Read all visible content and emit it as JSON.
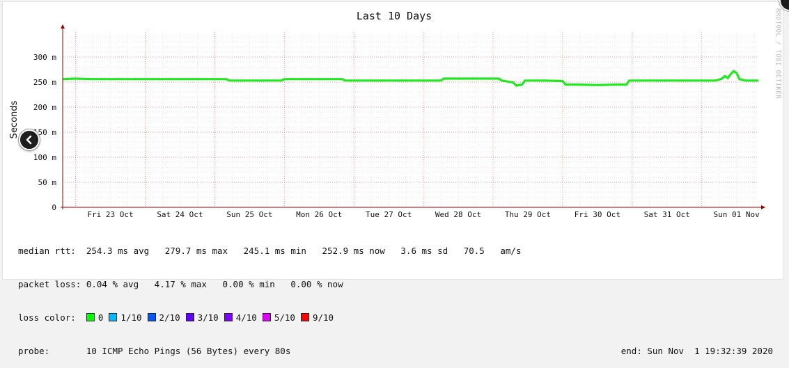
{
  "chart_data": {
    "type": "line",
    "title": "Last 10 Days",
    "ylabel": "Seconds",
    "xlabel": "",
    "ylim": [
      0,
      0.35
    ],
    "yticks": [
      {
        "value": 0,
        "label": "0"
      },
      {
        "value": 0.05,
        "label": "50 m"
      },
      {
        "value": 0.1,
        "label": "100 m"
      },
      {
        "value": 0.15,
        "label": "150 m"
      },
      {
        "value": 0.2,
        "label": "200 m"
      },
      {
        "value": 0.25,
        "label": "250 m"
      },
      {
        "value": 0.3,
        "label": "300 m"
      }
    ],
    "xlim": [
      "2020-10-22T19:32",
      "2020-11-01T19:32"
    ],
    "xticks": [
      {
        "value": "2020-10-23T12:00",
        "label": "Fri 23 Oct"
      },
      {
        "value": "2020-10-24T12:00",
        "label": "Sat 24 Oct"
      },
      {
        "value": "2020-10-25T12:00",
        "label": "Sun 25 Oct"
      },
      {
        "value": "2020-10-26T12:00",
        "label": "Mon 26 Oct"
      },
      {
        "value": "2020-10-27T12:00",
        "label": "Tue 27 Oct"
      },
      {
        "value": "2020-10-28T12:00",
        "label": "Wed 28 Oct"
      },
      {
        "value": "2020-10-29T12:00",
        "label": "Thu 29 Oct"
      },
      {
        "value": "2020-10-30T12:00",
        "label": "Fri 30 Oct"
      },
      {
        "value": "2020-10-31T12:00",
        "label": "Sat 31 Oct"
      },
      {
        "value": "2020-11-01T12:00",
        "label": "Sun 01 Nov"
      }
    ],
    "grid": true,
    "series": [
      {
        "name": "median rtt",
        "color": "#22e822",
        "points": [
          [
            "2020-10-22T19:32",
            0.256
          ],
          [
            "2020-10-23T00:00",
            0.257
          ],
          [
            "2020-10-23T06:00",
            0.256
          ],
          [
            "2020-10-23T12:00",
            0.256
          ],
          [
            "2020-10-23T18:00",
            0.256
          ],
          [
            "2020-10-24T00:00",
            0.256
          ],
          [
            "2020-10-24T06:00",
            0.256
          ],
          [
            "2020-10-24T12:00",
            0.256
          ],
          [
            "2020-10-24T18:00",
            0.256
          ],
          [
            "2020-10-25T00:00",
            0.256
          ],
          [
            "2020-10-25T04:00",
            0.256
          ],
          [
            "2020-10-25T05:00",
            0.253
          ],
          [
            "2020-10-25T12:00",
            0.253
          ],
          [
            "2020-10-25T18:00",
            0.253
          ],
          [
            "2020-10-25T23:00",
            0.253
          ],
          [
            "2020-10-26T00:00",
            0.256
          ],
          [
            "2020-10-26T12:00",
            0.256
          ],
          [
            "2020-10-26T20:00",
            0.256
          ],
          [
            "2020-10-26T21:00",
            0.253
          ],
          [
            "2020-10-27T06:00",
            0.253
          ],
          [
            "2020-10-27T18:00",
            0.253
          ],
          [
            "2020-10-28T06:00",
            0.253
          ],
          [
            "2020-10-28T07:00",
            0.257
          ],
          [
            "2020-10-28T12:00",
            0.257
          ],
          [
            "2020-10-28T18:00",
            0.257
          ],
          [
            "2020-10-29T02:00",
            0.257
          ],
          [
            "2020-10-29T03:00",
            0.253
          ],
          [
            "2020-10-29T07:00",
            0.249
          ],
          [
            "2020-10-29T08:00",
            0.243
          ],
          [
            "2020-10-29T10:00",
            0.245
          ],
          [
            "2020-10-29T11:00",
            0.253
          ],
          [
            "2020-10-29T18:00",
            0.253
          ],
          [
            "2020-10-30T00:00",
            0.252
          ],
          [
            "2020-10-30T01:00",
            0.245
          ],
          [
            "2020-10-30T06:00",
            0.245
          ],
          [
            "2020-10-30T12:00",
            0.244
          ],
          [
            "2020-10-30T18:00",
            0.245
          ],
          [
            "2020-10-30T22:00",
            0.245
          ],
          [
            "2020-10-30T23:00",
            0.253
          ],
          [
            "2020-10-31T06:00",
            0.253
          ],
          [
            "2020-10-31T12:00",
            0.253
          ],
          [
            "2020-10-31T18:00",
            0.253
          ],
          [
            "2020-11-01T00:00",
            0.253
          ],
          [
            "2020-11-01T05:00",
            0.253
          ],
          [
            "2020-11-01T07:00",
            0.257
          ],
          [
            "2020-11-01T08:00",
            0.262
          ],
          [
            "2020-11-01T09:00",
            0.258
          ],
          [
            "2020-11-01T10:00",
            0.266
          ],
          [
            "2020-11-01T11:00",
            0.272
          ],
          [
            "2020-11-01T12:00",
            0.268
          ],
          [
            "2020-11-01T13:00",
            0.256
          ],
          [
            "2020-11-01T15:00",
            0.253
          ],
          [
            "2020-11-01T19:32",
            0.253
          ]
        ]
      }
    ]
  },
  "stats": {
    "median_rtt_label": "median rtt:",
    "median_rtt_values": "254.3 ms avg   279.7 ms max   245.1 ms min   252.9 ms now   3.6 ms sd   70.5   am/s",
    "packet_loss_label": "packet loss:",
    "packet_loss_values": "0.04 % avg   4.17 % max   0.00 % min   0.00 % now",
    "loss_color_label": "loss color:",
    "loss_colors": [
      {
        "label": "0",
        "color": "#00ff00"
      },
      {
        "label": "1/10",
        "color": "#00b8ff"
      },
      {
        "label": "2/10",
        "color": "#0059ff"
      },
      {
        "label": "3/10",
        "color": "#5e00ff"
      },
      {
        "label": "4/10",
        "color": "#7e00ff"
      },
      {
        "label": "5/10",
        "color": "#dd00ff"
      },
      {
        "label": "9/10",
        "color": "#ff0000"
      }
    ],
    "probe_label": "probe:",
    "probe_value": "10 ICMP Echo Pings (56 Bytes) every 80s",
    "end_label": "end: Sun Nov  1 19:32:39 2020"
  },
  "sidebar_text": "RRDTOOL / TOBI OETIKER",
  "colors": {
    "grid_major": "#ff9999",
    "grid_minor": "#e8e8e8",
    "axis": "#990000",
    "line": "#22e822"
  }
}
